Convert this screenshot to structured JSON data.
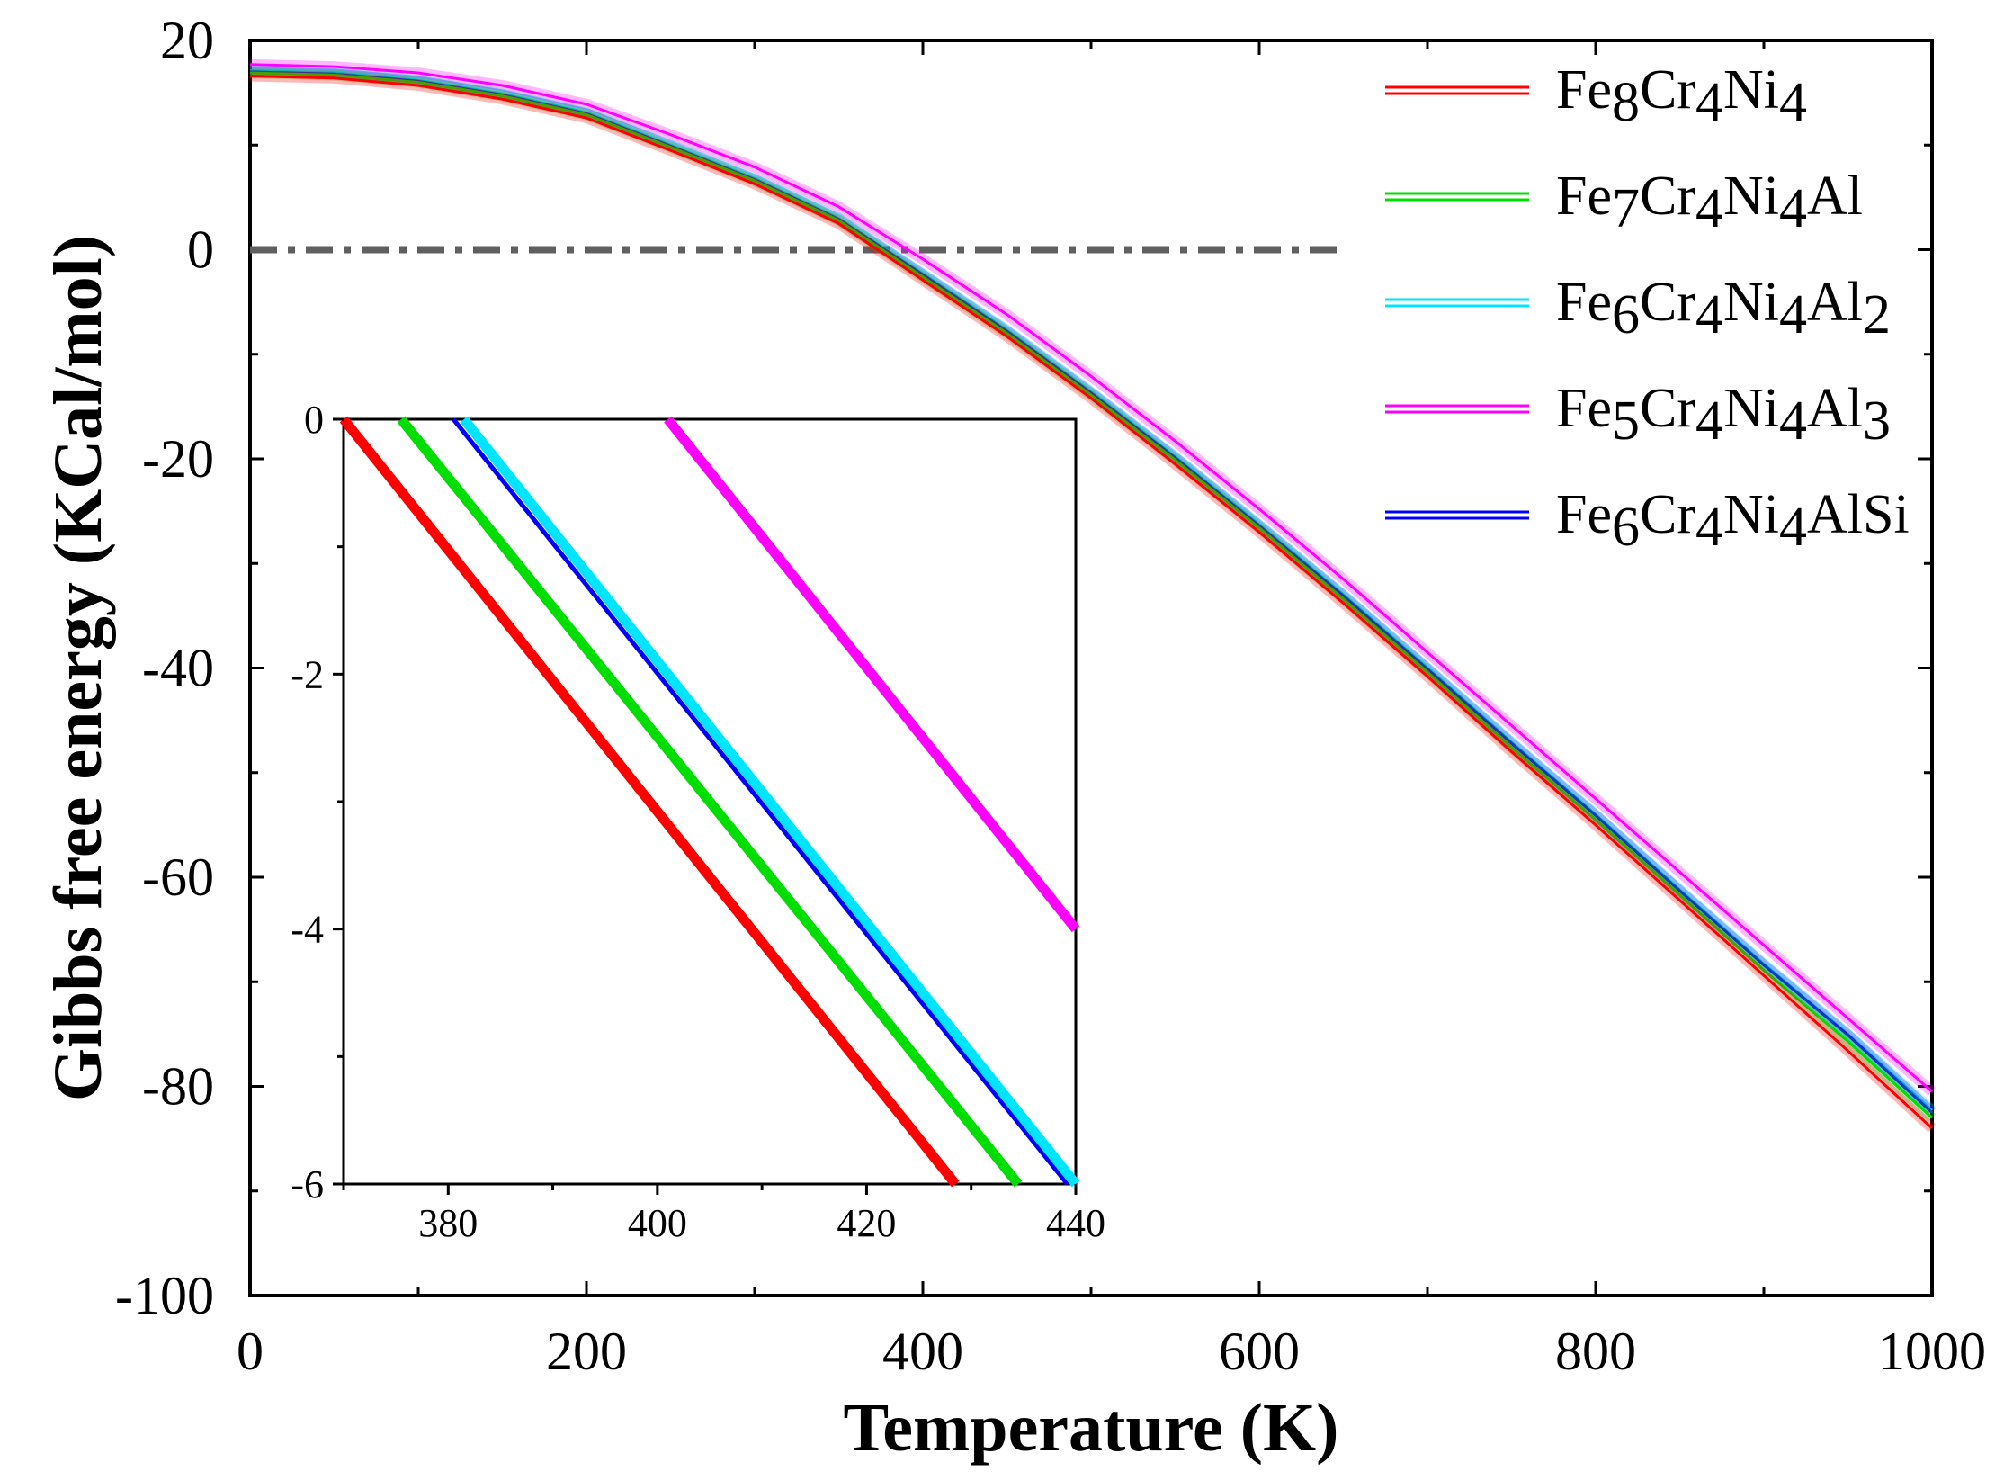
{
  "chart_data": [
    {
      "name": "main",
      "type": "line",
      "xlabel": "Temperature (K)",
      "ylabel": "Gibbs free energy (KCal/mol)",
      "xlim": [
        0,
        1000
      ],
      "ylim": [
        -100,
        20
      ],
      "xticks": [
        0,
        200,
        400,
        600,
        800,
        1000
      ],
      "yticks": [
        20,
        0,
        -20,
        -40,
        -60,
        -80,
        -100
      ],
      "x_tick_labels": [
        "0",
        "200",
        "400",
        "600",
        "800",
        "1000"
      ],
      "y_tick_labels": [
        "20",
        "0",
        "-20",
        "-40",
        "-60",
        "-80",
        "-100"
      ],
      "grid": false,
      "legend_position": "top-right",
      "reference_line": {
        "y": 0,
        "x_range": [
          0,
          650
        ],
        "style": "dash-dot",
        "color": "#606060"
      },
      "x": [
        0,
        50,
        100,
        150,
        200,
        250,
        300,
        350,
        400,
        450,
        500,
        550,
        600,
        650,
        700,
        750,
        800,
        850,
        900,
        950,
        1000
      ],
      "series": [
        {
          "name": "Fe8Cr4Ni4",
          "label_parts": [
            [
              "Fe",
              ""
            ],
            [
              "8",
              "sub"
            ],
            [
              "Cr",
              ""
            ],
            [
              "4",
              "sub"
            ],
            [
              "Ni",
              ""
            ],
            [
              "4",
              "sub"
            ]
          ],
          "color": "#ff0000",
          "values": [
            16.6,
            16.4,
            15.7,
            14.4,
            12.6,
            9.5,
            6.3,
            2.5,
            -2.9,
            -8.3,
            -14.2,
            -20.5,
            -27.0,
            -33.8,
            -40.8,
            -48.0,
            -55.0,
            -62.2,
            -69.4,
            -76.6,
            -84.0
          ]
        },
        {
          "name": "Fe7Cr4Ni4Al",
          "label_parts": [
            [
              "Fe",
              ""
            ],
            [
              "7",
              "sub"
            ],
            [
              "Cr",
              ""
            ],
            [
              "4",
              "sub"
            ],
            [
              "Ni",
              ""
            ],
            [
              "4",
              "sub"
            ],
            [
              "Al",
              ""
            ]
          ],
          "color": "#00dd00",
          "values": [
            16.9,
            16.7,
            16.0,
            14.7,
            12.9,
            9.8,
            6.6,
            2.8,
            -2.6,
            -8.0,
            -13.9,
            -20.1,
            -26.6,
            -33.4,
            -40.4,
            -47.6,
            -54.5,
            -61.7,
            -68.9,
            -75.7,
            -83.0
          ]
        },
        {
          "name": "Fe6Cr4Ni4Al2",
          "label_parts": [
            [
              "Fe",
              ""
            ],
            [
              "6",
              "sub"
            ],
            [
              "Cr",
              ""
            ],
            [
              "4",
              "sub"
            ],
            [
              "Ni",
              ""
            ],
            [
              "4",
              "sub"
            ],
            [
              "Al",
              ""
            ],
            [
              "2",
              "sub"
            ]
          ],
          "color": "#00e5ff",
          "values": [
            17.1,
            16.9,
            16.2,
            14.9,
            13.1,
            10.0,
            6.8,
            3.0,
            -2.3,
            -7.7,
            -13.6,
            -19.8,
            -26.3,
            -33.0,
            -40.0,
            -47.1,
            -54.0,
            -61.2,
            -68.3,
            -75.0,
            -82.3
          ]
        },
        {
          "name": "Fe5Cr4Ni4Al3",
          "label_parts": [
            [
              "Fe",
              ""
            ],
            [
              "5",
              "sub"
            ],
            [
              "Cr",
              ""
            ],
            [
              "4",
              "sub"
            ],
            [
              "Ni",
              ""
            ],
            [
              "4",
              "sub"
            ],
            [
              "Al",
              ""
            ],
            [
              "3",
              "sub"
            ]
          ],
          "color": "#ff00ff",
          "values": [
            17.7,
            17.5,
            16.9,
            15.7,
            13.9,
            11.0,
            7.9,
            4.1,
            -0.9,
            -6.2,
            -12.1,
            -18.3,
            -24.8,
            -31.5,
            -38.5,
            -45.5,
            -52.5,
            -59.5,
            -66.5,
            -73.5,
            -80.5
          ]
        },
        {
          "name": "Fe6Cr4Ni4AlSi",
          "label_parts": [
            [
              "Fe",
              ""
            ],
            [
              "6",
              "sub"
            ],
            [
              "Cr",
              ""
            ],
            [
              "4",
              "sub"
            ],
            [
              "Ni",
              ""
            ],
            [
              "4",
              "sub"
            ],
            [
              "AlSi",
              ""
            ]
          ],
          "color": "#0000ff",
          "values": [
            17.0,
            16.8,
            16.1,
            14.8,
            13.0,
            9.9,
            6.7,
            2.9,
            -2.4,
            -7.8,
            -13.7,
            -19.9,
            -26.4,
            -33.1,
            -40.1,
            -47.2,
            -54.1,
            -61.3,
            -68.4,
            -75.1,
            -82.5
          ]
        }
      ]
    },
    {
      "name": "inset",
      "type": "line",
      "xlabel": "",
      "ylabel": "",
      "xlim": [
        370,
        440
      ],
      "ylim": [
        -6,
        0
      ],
      "xticks": [
        380,
        400,
        420,
        440
      ],
      "yticks": [
        0,
        -2,
        -4,
        -6
      ],
      "x_tick_labels": [
        "380",
        "400",
        "420",
        "440"
      ],
      "y_tick_labels": [
        "0",
        "-2",
        "-4",
        "-6"
      ],
      "grid": false,
      "series": [
        {
          "name": "Fe8Cr4Ni4",
          "color": "#ff0000",
          "x": [
            370,
            428.5
          ],
          "values": [
            0,
            -6
          ]
        },
        {
          "name": "Fe7Cr4Ni4Al",
          "color": "#00dd00",
          "x": [
            375.5,
            434.5
          ],
          "values": [
            0,
            -6
          ]
        },
        {
          "name": "Fe6Cr4Ni4AlSi",
          "color": "#0000ff",
          "x": [
            380.5,
            439.2
          ],
          "values": [
            0,
            -6
          ]
        },
        {
          "name": "Fe6Cr4Ni4Al2",
          "color": "#00e5ff",
          "x": [
            381.5,
            440
          ],
          "values": [
            0,
            -6
          ]
        },
        {
          "name": "Fe5Cr4Ni4Al3",
          "color": "#ff00ff",
          "x": [
            401,
            440
          ],
          "values": [
            0,
            -4
          ]
        }
      ]
    }
  ]
}
